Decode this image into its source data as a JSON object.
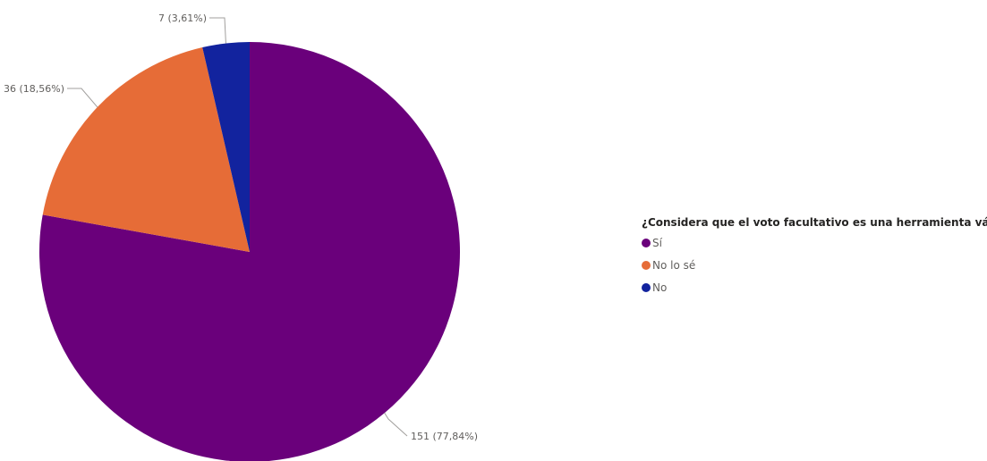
{
  "chart_data": {
    "type": "pie",
    "legend": {
      "title": "¿Considera que el voto facultativo es una herramienta válida p",
      "placement": "right"
    },
    "start_angle_deg": 0,
    "direction": "clockwise",
    "slices": [
      {
        "label": "Sí",
        "value": 151,
        "percent": 77.84,
        "data_label": "151 (77,84%)",
        "color": "#6a007b"
      },
      {
        "label": "No lo sé",
        "value": 36,
        "percent": 18.56,
        "data_label": "36 (18,56%)",
        "color": "#e66c37"
      },
      {
        "label": "No",
        "value": 7,
        "percent": 3.61,
        "data_label": "7 (3,61%)",
        "color": "#12239e"
      }
    ]
  }
}
